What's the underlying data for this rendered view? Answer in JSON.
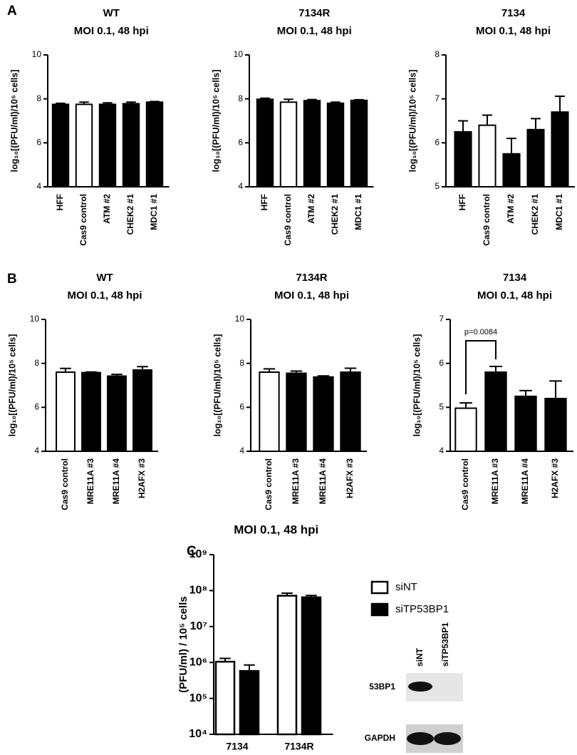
{
  "panel_labels": [
    "A",
    "B",
    "C"
  ],
  "chart_data": [
    {
      "type": "bar",
      "title": "WT",
      "subtitle": "MOI 0.1, 48 hpi",
      "ylabel": "log₁₀[(PFU/ml)/10⁵ cells]",
      "categories": [
        "HFF",
        "Cas9 control",
        "ATM #2",
        "CHEK2 #1",
        "MDC1 #1"
      ],
      "values": [
        7.75,
        7.75,
        7.75,
        7.78,
        7.85
      ],
      "errors": [
        0.05,
        0.1,
        0.07,
        0.07,
        0.03
      ],
      "colors": [
        "#000000",
        "#ffffff",
        "#000000",
        "#000000",
        "#000000"
      ],
      "ylim": [
        4,
        10
      ],
      "yticks": [
        4,
        6,
        8,
        10
      ]
    },
    {
      "type": "bar",
      "title": "7134R",
      "subtitle": "MOI 0.1, 48 hpi",
      "ylabel": "log₁₀[(PFU/ml)/10⁵ cells]",
      "categories": [
        "HFF",
        "Cas9 control",
        "ATM #2",
        "CHEK2 #1",
        "MDC1 #1"
      ],
      "values": [
        7.98,
        7.85,
        7.92,
        7.8,
        7.93
      ],
      "errors": [
        0.05,
        0.13,
        0.05,
        0.05,
        0.03
      ],
      "colors": [
        "#000000",
        "#ffffff",
        "#000000",
        "#000000",
        "#000000"
      ],
      "ylim": [
        4,
        10
      ],
      "yticks": [
        4,
        6,
        8,
        10
      ]
    },
    {
      "type": "bar",
      "title": "7134",
      "subtitle": "MOI 0.1, 48 hpi",
      "ylabel": "log₁₀[(PFU/ml)/10⁵ cells]",
      "categories": [
        "HFF",
        "Cas9 control",
        "ATM #2",
        "CHEK2 #1",
        "MDC1 #1"
      ],
      "values": [
        6.25,
        6.4,
        5.75,
        6.3,
        6.7
      ],
      "errors": [
        0.25,
        0.23,
        0.35,
        0.25,
        0.36
      ],
      "colors": [
        "#000000",
        "#ffffff",
        "#000000",
        "#000000",
        "#000000"
      ],
      "ylim": [
        5,
        8
      ],
      "yticks": [
        5,
        6,
        7,
        8
      ]
    },
    {
      "type": "bar",
      "title": "WT",
      "subtitle": "MOI 0.1, 48 hpi",
      "ylabel": "log₁₀[(PFU/ml)/10⁵ cells]",
      "categories": [
        "Cas9 control",
        "MRE11A #3",
        "MRE11A #4",
        "H2AFX #3"
      ],
      "values": [
        7.6,
        7.58,
        7.42,
        7.7
      ],
      "errors": [
        0.17,
        0.03,
        0.08,
        0.15
      ],
      "colors": [
        "#ffffff",
        "#000000",
        "#000000",
        "#000000"
      ],
      "ylim": [
        4,
        10
      ],
      "yticks": [
        4,
        6,
        8,
        10
      ]
    },
    {
      "type": "bar",
      "title": "7134R",
      "subtitle": "MOI 0.1, 48 hpi",
      "ylabel": "log₁₀[(PFU/ml)/10⁵ cells]",
      "categories": [
        "Cas9 control",
        "MRE11A #3",
        "MRE11A #4",
        "H2AFX #3"
      ],
      "values": [
        7.6,
        7.55,
        7.38,
        7.6
      ],
      "errors": [
        0.15,
        0.1,
        0.05,
        0.18
      ],
      "colors": [
        "#ffffff",
        "#000000",
        "#000000",
        "#000000"
      ],
      "ylim": [
        4,
        10
      ],
      "yticks": [
        4,
        6,
        8,
        10
      ]
    },
    {
      "type": "bar",
      "title": "7134",
      "subtitle": "MOI 0.1, 48 hpi",
      "ylabel": "log₁₀[(PFU/ml)/10⁵ cells]",
      "categories": [
        "Cas9 control",
        "MRE11A #3",
        "MRE11A #4",
        "H2AFX #3"
      ],
      "values": [
        4.98,
        5.8,
        5.25,
        5.2
      ],
      "errors": [
        0.12,
        0.13,
        0.13,
        0.4
      ],
      "colors": [
        "#ffffff",
        "#000000",
        "#000000",
        "#000000"
      ],
      "annotation": "p=0.0084",
      "ylim": [
        4,
        7
      ],
      "yticks": [
        4,
        5,
        6,
        7
      ]
    },
    {
      "type": "grouped_bar",
      "title": "MOI 0.1, 48 hpi",
      "ylabel": "(PFU/ml) / 10⁵ cells",
      "categories": [
        "7134",
        "7134R"
      ],
      "series": [
        {
          "name": "siNT",
          "color": "#ffffff",
          "values": [
            1050000,
            72000000
          ],
          "errors": [
            250000,
            13000000
          ]
        },
        {
          "name": "siTP53BP1",
          "color": "#000000",
          "values": [
            580000,
            65000000
          ],
          "errors": [
            270000,
            8000000
          ]
        }
      ],
      "log_scale": true,
      "ylim": [
        10000,
        1000000000
      ],
      "yticks": [
        {
          "value": 10000,
          "label": "10⁴"
        },
        {
          "value": 100000,
          "label": "10⁵"
        },
        {
          "value": 1000000,
          "label": "10⁶"
        },
        {
          "value": 10000000,
          "label": "10⁷"
        },
        {
          "value": 100000000,
          "label": "10⁸"
        },
        {
          "value": 1000000000,
          "label": "10⁹"
        }
      ]
    }
  ],
  "blot": {
    "lanes": [
      "siNT",
      "siTP53BP1"
    ],
    "rows": [
      "53BP1",
      "GAPDH"
    ]
  }
}
